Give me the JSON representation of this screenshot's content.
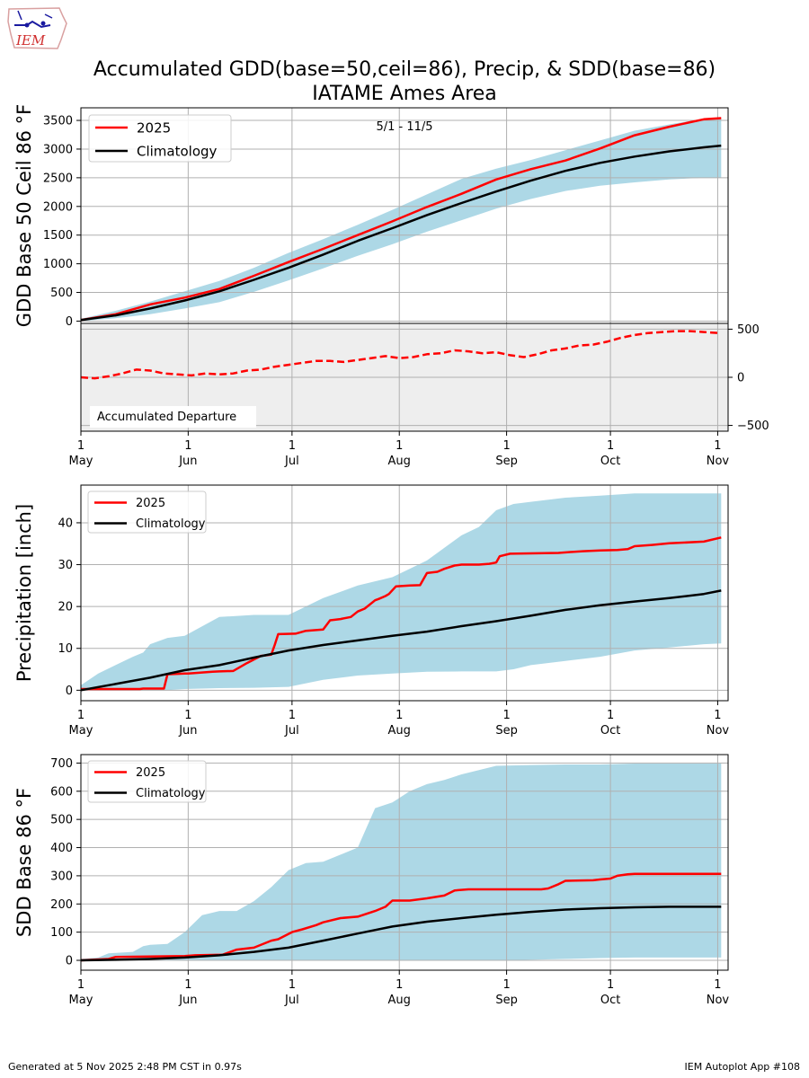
{
  "logo_text": "IEM",
  "title_line1": "Accumulated GDD(base=50,ceil=86), Precip, & SDD(base=86)",
  "title_line2": "IATAME Ames Area",
  "footer_left": "Generated at 5 Nov 2025 2:48 PM CST in 0.97s",
  "footer_right": "IEM Autoplot App #108",
  "colors": {
    "current": "#ff0000",
    "climo": "#000000",
    "band": "#add8e6",
    "departure_bg": "#eeeeee"
  },
  "chart_data": [
    {
      "id": "gdd",
      "type": "line",
      "ylabel": "GDD Base 50 Ceil 86 °F",
      "annotation": "5/1 - 11/5",
      "legend_position": "upper-left",
      "ylim": [
        -40,
        3720
      ],
      "yticks": [
        0,
        500,
        1000,
        1500,
        2000,
        2500,
        3000,
        3500
      ],
      "x_day_range": [
        0,
        187
      ],
      "xticks": [
        {
          "day": 0,
          "label": [
            "1",
            "May"
          ]
        },
        {
          "day": 31,
          "label": [
            "1",
            "Jun"
          ]
        },
        {
          "day": 61,
          "label": [
            "1",
            "Jul"
          ]
        },
        {
          "day": 92,
          "label": [
            "1",
            "Aug"
          ]
        },
        {
          "day": 123,
          "label": [
            "1",
            "Sep"
          ]
        },
        {
          "day": 153,
          "label": [
            "1",
            "Oct"
          ]
        },
        {
          "day": 184,
          "label": [
            "1",
            "Nov"
          ]
        }
      ],
      "series": [
        {
          "name": "2025",
          "role": "current",
          "x": [
            0,
            10,
            20,
            30,
            40,
            50,
            60,
            70,
            80,
            90,
            100,
            110,
            120,
            130,
            140,
            150,
            160,
            170,
            180,
            185
          ],
          "values": [
            20,
            120,
            290,
            410,
            560,
            790,
            1030,
            1260,
            1500,
            1740,
            1990,
            2220,
            2470,
            2650,
            2800,
            3010,
            3240,
            3390,
            3520,
            3540
          ]
        },
        {
          "name": "Climatology",
          "role": "climo",
          "x": [
            0,
            10,
            20,
            30,
            40,
            50,
            60,
            70,
            80,
            90,
            100,
            110,
            120,
            130,
            140,
            150,
            160,
            170,
            180,
            185
          ],
          "values": [
            20,
            100,
            220,
            360,
            520,
            720,
            930,
            1160,
            1400,
            1620,
            1850,
            2060,
            2260,
            2450,
            2620,
            2760,
            2870,
            2960,
            3030,
            3060
          ]
        }
      ],
      "band": {
        "x": [
          0,
          10,
          20,
          30,
          40,
          50,
          60,
          70,
          80,
          90,
          100,
          110,
          120,
          130,
          140,
          150,
          160,
          170,
          180,
          185
        ],
        "lower": [
          0,
          50,
          120,
          220,
          330,
          510,
          710,
          920,
          1140,
          1340,
          1560,
          1760,
          1960,
          2130,
          2270,
          2360,
          2420,
          2470,
          2500,
          2500
        ],
        "upper": [
          40,
          180,
          340,
          520,
          700,
          930,
          1190,
          1430,
          1680,
          1940,
          2210,
          2480,
          2660,
          2810,
          2980,
          3150,
          3320,
          3430,
          3530,
          3540
        ]
      }
    },
    {
      "id": "departure",
      "type": "line",
      "label": "Accumulated Departure",
      "ylim": [
        -560,
        560
      ],
      "yticks": [
        -500,
        0,
        500
      ],
      "x_day_range": [
        0,
        187
      ],
      "series": [
        {
          "name": "Accumulated Departure",
          "role": "current",
          "dashed": true,
          "x": [
            0,
            4,
            8,
            12,
            16,
            20,
            24,
            28,
            32,
            36,
            40,
            44,
            48,
            52,
            56,
            60,
            64,
            68,
            72,
            76,
            80,
            84,
            88,
            92,
            96,
            100,
            104,
            108,
            112,
            116,
            120,
            124,
            128,
            132,
            136,
            140,
            144,
            148,
            152,
            156,
            160,
            164,
            168,
            172,
            176,
            180,
            184
          ],
          "values": [
            0,
            -10,
            10,
            40,
            80,
            70,
            40,
            30,
            20,
            40,
            30,
            40,
            70,
            80,
            110,
            130,
            150,
            170,
            170,
            160,
            180,
            200,
            220,
            200,
            210,
            240,
            250,
            280,
            270,
            250,
            260,
            230,
            210,
            240,
            280,
            300,
            330,
            340,
            370,
            410,
            440,
            460,
            470,
            480,
            480,
            470,
            460
          ]
        }
      ]
    },
    {
      "id": "precip",
      "type": "line",
      "ylabel": "Precipitation [inch]",
      "legend_position": "upper-left",
      "ylim": [
        -2.5,
        49
      ],
      "yticks": [
        0,
        10,
        20,
        30,
        40
      ],
      "x_day_range": [
        0,
        187
      ],
      "xticks": [
        {
          "day": 0,
          "label": [
            "1",
            "May"
          ]
        },
        {
          "day": 31,
          "label": [
            "1",
            "Jun"
          ]
        },
        {
          "day": 61,
          "label": [
            "1",
            "Jul"
          ]
        },
        {
          "day": 92,
          "label": [
            "1",
            "Aug"
          ]
        },
        {
          "day": 123,
          "label": [
            "1",
            "Sep"
          ]
        },
        {
          "day": 153,
          "label": [
            "1",
            "Oct"
          ]
        },
        {
          "day": 184,
          "label": [
            "1",
            "Nov"
          ]
        }
      ],
      "series": [
        {
          "name": "2025",
          "role": "current",
          "x": [
            0,
            17,
            18,
            24,
            25,
            30,
            31,
            38,
            40,
            44,
            48,
            52,
            55,
            56,
            57,
            62,
            65,
            70,
            72,
            75,
            78,
            80,
            82,
            85,
            86,
            88,
            89,
            91,
            95,
            98,
            100,
            103,
            105,
            108,
            110,
            115,
            118,
            120,
            121,
            124,
            130,
            138,
            141,
            145,
            150,
            155,
            158,
            160,
            165,
            170,
            180,
            185
          ],
          "values": [
            0.3,
            0.3,
            0.4,
            0.4,
            3.8,
            4,
            4,
            4.4,
            4.5,
            4.6,
            6.5,
            8.2,
            8.5,
            10.8,
            13.4,
            13.5,
            14.2,
            14.5,
            16.7,
            17,
            17.5,
            18.8,
            19.5,
            21.5,
            21.8,
            22.5,
            23,
            24.8,
            25,
            25.1,
            28,
            28.3,
            29,
            29.8,
            30,
            30,
            30.2,
            30.5,
            32,
            32.6,
            32.7,
            32.8,
            33,
            33.2,
            33.4,
            33.5,
            33.7,
            34.4,
            34.7,
            35.1,
            35.5,
            36.5
          ]
        },
        {
          "name": "Climatology",
          "role": "climo",
          "x": [
            0,
            10,
            20,
            30,
            40,
            50,
            60,
            70,
            80,
            90,
            100,
            110,
            120,
            130,
            140,
            150,
            160,
            170,
            180,
            185
          ],
          "values": [
            0,
            1.5,
            3,
            4.8,
            6,
            7.8,
            9.5,
            10.8,
            11.9,
            13,
            14,
            15.3,
            16.5,
            17.8,
            19.2,
            20.3,
            21.2,
            22,
            23,
            23.8
          ]
        }
      ],
      "band": {
        "x": [
          0,
          5,
          10,
          15,
          18,
          20,
          25,
          30,
          40,
          50,
          60,
          70,
          80,
          90,
          100,
          110,
          115,
          120,
          125,
          130,
          140,
          150,
          160,
          170,
          180,
          185
        ],
        "lower": [
          0,
          0,
          0,
          0,
          0,
          0,
          0,
          0.3,
          0.5,
          0.6,
          0.8,
          2.5,
          3.5,
          4,
          4.4,
          4.5,
          4.5,
          4.5,
          5,
          6,
          7,
          8,
          9.5,
          10.2,
          11,
          11.2
        ],
        "upper": [
          1.2,
          4,
          6,
          8,
          9,
          11,
          12.5,
          13,
          17.5,
          18,
          18,
          22,
          25,
          27,
          31,
          37,
          39,
          43,
          44.5,
          45,
          46,
          46.5,
          47,
          47,
          47,
          47
        ]
      }
    },
    {
      "id": "sdd",
      "type": "line",
      "ylabel": "SDD Base 86 °F",
      "legend_position": "upper-left",
      "ylim": [
        -35,
        730
      ],
      "yticks": [
        0,
        100,
        200,
        300,
        400,
        500,
        600,
        700
      ],
      "x_day_range": [
        0,
        187
      ],
      "xticks": [
        {
          "day": 0,
          "label": [
            "1",
            "May"
          ]
        },
        {
          "day": 31,
          "label": [
            "1",
            "Jun"
          ]
        },
        {
          "day": 61,
          "label": [
            "1",
            "Jul"
          ]
        },
        {
          "day": 92,
          "label": [
            "1",
            "Aug"
          ]
        },
        {
          "day": 123,
          "label": [
            "1",
            "Sep"
          ]
        },
        {
          "day": 153,
          "label": [
            "1",
            "Oct"
          ]
        },
        {
          "day": 184,
          "label": [
            "1",
            "Nov"
          ]
        }
      ],
      "series": [
        {
          "name": "2025",
          "role": "current",
          "x": [
            0,
            8,
            10,
            30,
            33,
            41,
            45,
            50,
            55,
            57,
            61,
            64,
            68,
            70,
            75,
            80,
            85,
            88,
            90,
            95,
            100,
            105,
            108,
            112,
            118,
            125,
            133,
            135,
            138,
            140,
            143,
            148,
            150,
            153,
            155,
            158,
            160,
            165,
            170,
            175,
            180,
            185
          ],
          "values": [
            0,
            5,
            12,
            15,
            18,
            20,
            38,
            45,
            70,
            75,
            100,
            110,
            125,
            135,
            150,
            155,
            175,
            190,
            212,
            212,
            220,
            230,
            248,
            252,
            252,
            252,
            252,
            255,
            270,
            282,
            283,
            284,
            287,
            290,
            300,
            305,
            307,
            307,
            307,
            307,
            307,
            307
          ]
        },
        {
          "name": "Climatology",
          "role": "climo",
          "x": [
            0,
            10,
            20,
            30,
            40,
            50,
            60,
            70,
            80,
            90,
            100,
            110,
            120,
            130,
            140,
            150,
            160,
            170,
            180,
            185
          ],
          "values": [
            0,
            2,
            5,
            10,
            18,
            30,
            45,
            70,
            95,
            120,
            137,
            150,
            162,
            172,
            180,
            185,
            188,
            190,
            190,
            190
          ]
        }
      ],
      "band": {
        "x": [
          0,
          5,
          8,
          15,
          18,
          20,
          25,
          30,
          35,
          40,
          45,
          50,
          55,
          60,
          65,
          70,
          75,
          80,
          85,
          90,
          95,
          100,
          105,
          110,
          115,
          120,
          130,
          140,
          150,
          160,
          170,
          180,
          185
        ],
        "lower": [
          0,
          0,
          0,
          0,
          0,
          0,
          0,
          0,
          0,
          0,
          0,
          0,
          0,
          0,
          0,
          0,
          0,
          0,
          0,
          0,
          0,
          0,
          0,
          0,
          0,
          0,
          2,
          5,
          8,
          10,
          10,
          10,
          10
        ],
        "upper": [
          5,
          10,
          25,
          30,
          50,
          55,
          58,
          100,
          160,
          175,
          175,
          210,
          260,
          320,
          345,
          350,
          375,
          400,
          540,
          560,
          600,
          625,
          640,
          660,
          675,
          690,
          693,
          695,
          695,
          698,
          698,
          698,
          698
        ]
      }
    }
  ]
}
